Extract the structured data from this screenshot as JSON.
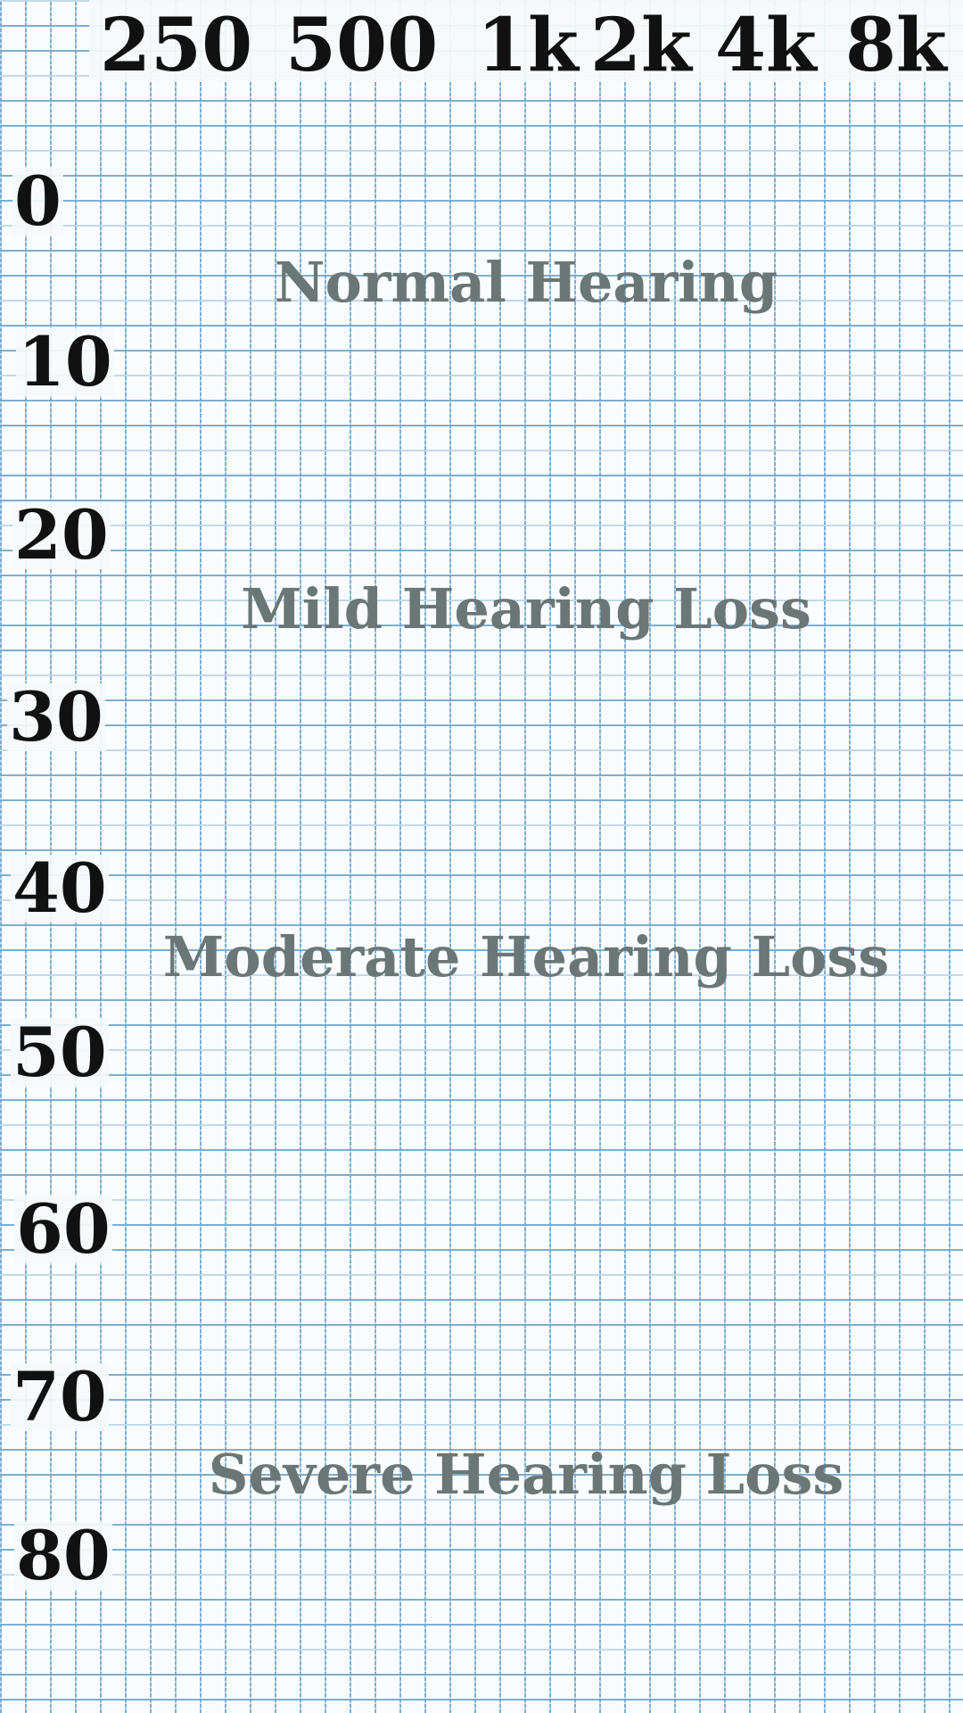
{
  "chart_data": {
    "type": "scatter",
    "title": "",
    "xlabel": "",
    "ylabel": "",
    "x_ticks": [
      "250",
      "500",
      "1k",
      "2k",
      "4k",
      "8k"
    ],
    "y_ticks": [
      "0",
      "10",
      "20",
      "30",
      "40",
      "50",
      "60",
      "70",
      "80"
    ],
    "ylim": [
      0,
      80
    ],
    "y_inverted": true,
    "grid": true,
    "series": [],
    "regions": [
      {
        "label": "Normal Hearing",
        "center_db": 5
      },
      {
        "label": "Mild Hearing Loss",
        "center_db": 25
      },
      {
        "label": "Moderate Hearing Loss",
        "center_db": 46
      },
      {
        "label": "Severe Hearing Loss",
        "center_db": 77
      }
    ],
    "colors": {
      "grid": "#78aacd",
      "axis_text": "#111111",
      "region_text": "#6b7676"
    }
  }
}
